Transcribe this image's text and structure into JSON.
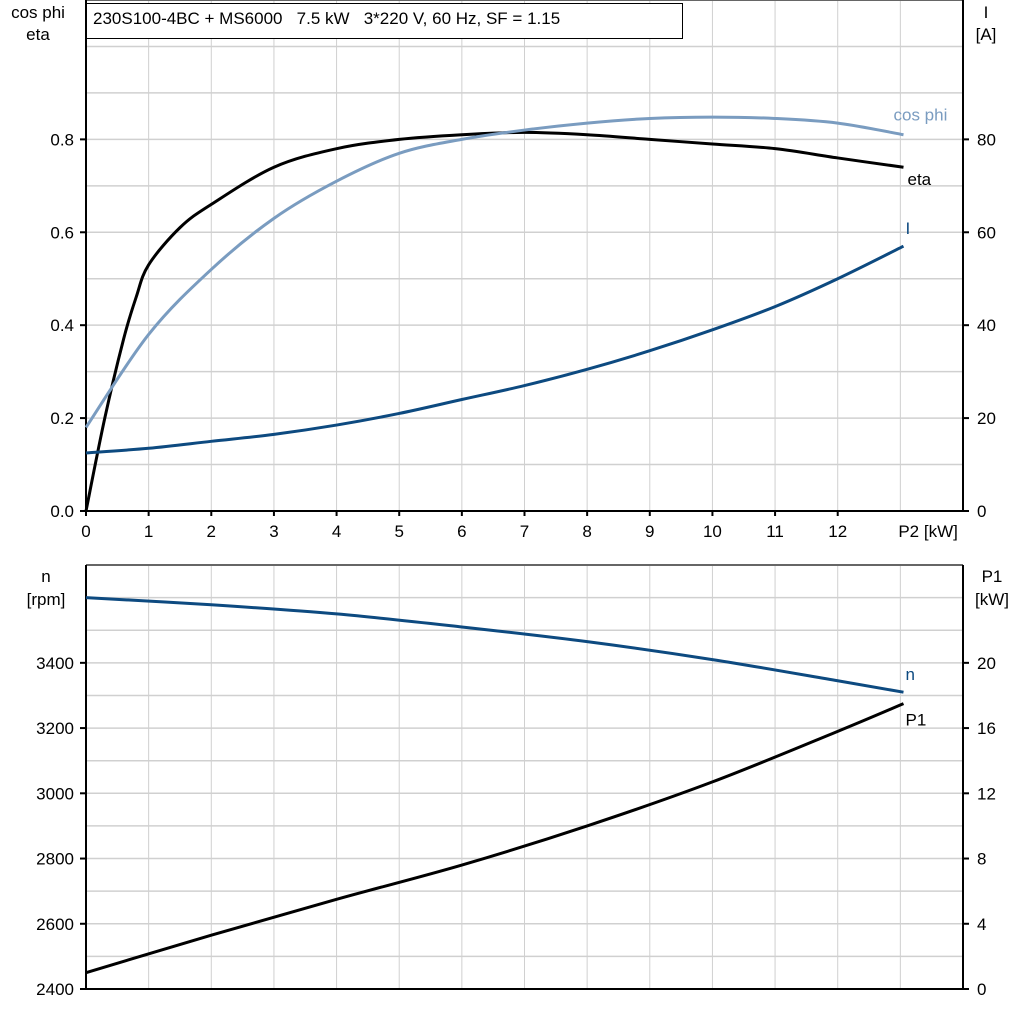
{
  "chart_data": [
    {
      "type": "line",
      "title": "230S100-4BC + MS6000   7.5 kW   3*220 V, 60 Hz, SF = 1.15",
      "ylabel_left": [
        "cos phi",
        "eta"
      ],
      "ylabel_right": [
        "I",
        "[A]"
      ],
      "xlabel": "P2 [kW]",
      "xlim": [
        0,
        14
      ],
      "ylim_left": [
        0,
        1.1
      ],
      "ylim_right": [
        0,
        110
      ],
      "grid": true,
      "xticks": [
        "0",
        "1",
        "2",
        "3",
        "4",
        "5",
        "6",
        "7",
        "8",
        "9",
        "10",
        "11",
        "12"
      ],
      "yticks_left": [
        "0.0",
        "0.2",
        "0.4",
        "0.6",
        "0.8"
      ],
      "yticks_right": [
        "0",
        "20",
        "40",
        "60",
        "80"
      ],
      "series": [
        {
          "name": "eta",
          "axis": "left",
          "color": "#000000",
          "x": [
            0,
            0.3,
            0.6,
            0.8,
            1,
            1.5,
            2,
            3,
            4,
            5,
            6,
            7,
            8,
            9,
            10,
            11,
            12,
            13.05
          ],
          "y": [
            0,
            0.2,
            0.37,
            0.46,
            0.53,
            0.61,
            0.66,
            0.74,
            0.78,
            0.8,
            0.81,
            0.815,
            0.81,
            0.8,
            0.79,
            0.78,
            0.76,
            0.74
          ]
        },
        {
          "name": "cos phi",
          "axis": "left",
          "color": "#7a9cc0",
          "x": [
            0,
            1,
            2,
            3,
            4,
            5,
            6,
            7,
            8,
            9,
            10,
            11,
            12,
            13.05
          ],
          "y": [
            0.18,
            0.38,
            0.52,
            0.63,
            0.71,
            0.77,
            0.8,
            0.82,
            0.835,
            0.845,
            0.848,
            0.845,
            0.835,
            0.81
          ]
        },
        {
          "name": "I",
          "axis": "right",
          "color": "#0d4a80",
          "x": [
            0,
            1,
            2,
            3,
            4,
            5,
            6,
            7,
            8,
            9,
            10,
            11,
            12,
            13.05
          ],
          "y": [
            12.5,
            13.5,
            15,
            16.5,
            18.5,
            21,
            24,
            27,
            30.5,
            34.5,
            39,
            44,
            50,
            57
          ]
        }
      ]
    },
    {
      "type": "line",
      "ylabel_left": [
        "n",
        "[rpm]"
      ],
      "ylabel_right": [
        "P1",
        "[kW]"
      ],
      "xlim": [
        0,
        14
      ],
      "ylim_left": [
        2400,
        3700
      ],
      "ylim_right": [
        0,
        26
      ],
      "grid": true,
      "yticks_left": [
        "2400",
        "2600",
        "2800",
        "3000",
        "3200",
        "3400"
      ],
      "yticks_right": [
        "0",
        "4",
        "8",
        "12",
        "16",
        "20"
      ],
      "series": [
        {
          "name": "n",
          "axis": "left",
          "color": "#0d4a80",
          "x": [
            0,
            2,
            4,
            6,
            8,
            10,
            12,
            13.05
          ],
          "y": [
            3600,
            3578,
            3550,
            3510,
            3465,
            3410,
            3345,
            3310
          ]
        },
        {
          "name": "P1",
          "axis": "right",
          "color": "#000000",
          "x": [
            0,
            2,
            4,
            6,
            8,
            10,
            12,
            13.05
          ],
          "y": [
            1.0,
            3.3,
            5.5,
            7.6,
            10.0,
            12.7,
            15.8,
            17.5
          ]
        }
      ]
    }
  ]
}
